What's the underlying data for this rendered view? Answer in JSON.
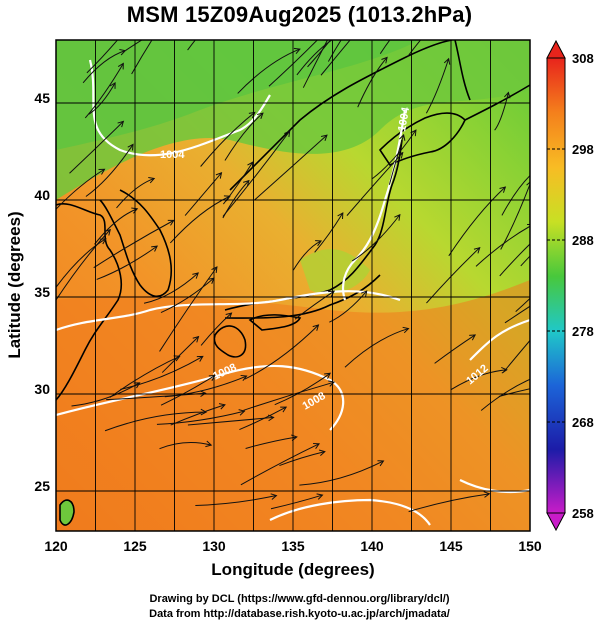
{
  "title": "MSM 15Z09Aug2025 (1013.2hPa)",
  "axes": {
    "x_label": "Longitude (degrees)",
    "y_label": "Latitude  (degrees)",
    "x_ticks": [
      "120",
      "125",
      "130",
      "135",
      "140",
      "145",
      "150"
    ],
    "y_ticks": [
      "25",
      "30",
      "35",
      "40",
      "45"
    ]
  },
  "colorbar": {
    "ticks": [
      "308",
      "298",
      "288",
      "278",
      "268",
      "258"
    ],
    "colors": [
      "#e8241c",
      "#f4801c",
      "#f8bc24",
      "#c8e024",
      "#48c83c",
      "#20c8c8",
      "#1c64d8",
      "#1c1ca8",
      "#c81cc8"
    ]
  },
  "contour_labels": [
    "1004",
    "1004",
    "1008",
    "1008",
    "1012",
    "1012",
    "1012"
  ],
  "credits": {
    "line1": "Drawing by DCL (https://www.gfd-dennou.org/library/dcl/)",
    "line2": "Data from http://database.rish.kyoto-u.ac.jp/arch/jmadata/"
  },
  "chart_data": {
    "type": "heatmap",
    "title": "MSM 15Z09Aug2025 (1013.2hPa)",
    "xlabel": "Longitude (degrees)",
    "ylabel": "Latitude  (degrees)",
    "xlim": [
      120,
      150
    ],
    "ylim": [
      22.4,
      47.6
    ],
    "colorbar_range": [
      258,
      308
    ],
    "colorbar_ticks": [
      258,
      268,
      278,
      288,
      298,
      308
    ],
    "pressure_contours": [
      1004,
      1008,
      1012
    ],
    "grid": true
  }
}
